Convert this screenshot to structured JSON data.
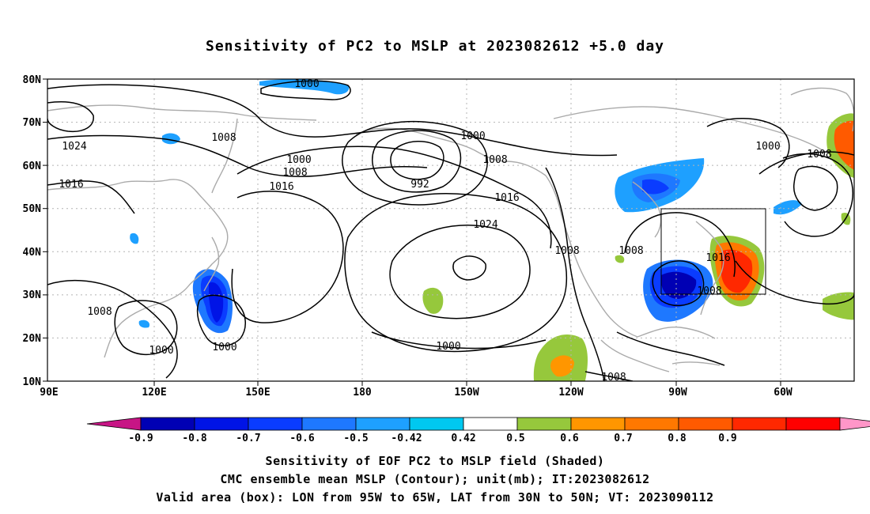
{
  "title": "Sensitivity of PC2 to MSLP at 2023082612 +5.0 day",
  "lat_labels": [
    "80N",
    "70N",
    "60N",
    "50N",
    "40N",
    "30N",
    "20N",
    "10N"
  ],
  "lon_labels": [
    "90E",
    "120E",
    "150E",
    "180",
    "150W",
    "120W",
    "90W",
    "60W"
  ],
  "colorbar": {
    "tick_labels": [
      "-0.9",
      "-0.8",
      "-0.7",
      "-0.6",
      "-0.5",
      "-0.42",
      "0.42",
      "0.5",
      "0.6",
      "0.7",
      "0.8",
      "0.9"
    ],
    "colors": [
      "#c71585",
      "#0000b4",
      "#0014e6",
      "#0a3cff",
      "#1e78ff",
      "#1ea0ff",
      "#00c8f0",
      "#ffffff",
      "#96c83c",
      "#ff9600",
      "#ff7800",
      "#ff5a00",
      "#ff2800",
      "#ff0000",
      "#ff96c8"
    ]
  },
  "contour_labels": [
    "1000",
    "1008",
    "1000",
    "1000",
    "1024",
    "1008",
    "1008",
    "1000",
    "1008",
    "1016",
    "992",
    "1016",
    "1016",
    "1024",
    "1008",
    "1008",
    "1016",
    "1008",
    "1000",
    "1000",
    "1008",
    "1000",
    "1008"
  ],
  "captions": [
    "Sensitivity of EOF PC2 to MSLP field (Shaded)",
    "CMC ensemble mean MSLP (Contour); unit(mb); IT:2023082612",
    "Valid area (box): LON from 95W to 65W, LAT from 30N to 50N; VT: 2023090112"
  ]
}
